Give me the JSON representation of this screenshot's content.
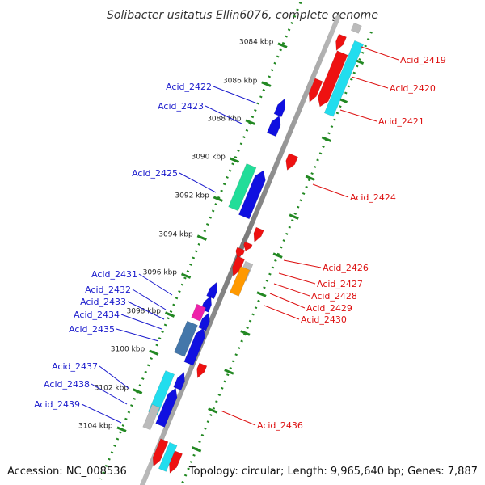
{
  "title": "Solibacter usitatus Ellin6076, complete genome",
  "accession": "Accession: NC_008536",
  "topology": "Topology: circular; Length: 9,965,640 bp; Genes: 7,887",
  "ticks": [
    {
      "label": "3084 kbp"
    },
    {
      "label": "3086 kbp"
    },
    {
      "label": "3088 kbp"
    },
    {
      "label": "3090 kbp"
    },
    {
      "label": "3092 kbp"
    },
    {
      "label": "3094 kbp"
    },
    {
      "label": "3096 kbp"
    },
    {
      "label": "3098 kbp"
    },
    {
      "label": "3100 kbp"
    },
    {
      "label": "3102 kbp"
    },
    {
      "label": "3104 kbp"
    }
  ],
  "genes_left": [
    {
      "label": "Acid_2422"
    },
    {
      "label": "Acid_2423"
    },
    {
      "label": "Acid_2425"
    },
    {
      "label": "Acid_2431"
    },
    {
      "label": "Acid_2432"
    },
    {
      "label": "Acid_2433"
    },
    {
      "label": "Acid_2434"
    },
    {
      "label": "Acid_2435"
    },
    {
      "label": "Acid_2437"
    },
    {
      "label": "Acid_2438"
    },
    {
      "label": "Acid_2439"
    }
  ],
  "genes_right": [
    {
      "label": "Acid_2419"
    },
    {
      "label": "Acid_2420"
    },
    {
      "label": "Acid_2421"
    },
    {
      "label": "Acid_2424"
    },
    {
      "label": "Acid_2426"
    },
    {
      "label": "Acid_2427"
    },
    {
      "label": "Acid_2428"
    },
    {
      "label": "Acid_2429"
    },
    {
      "label": "Acid_2430"
    },
    {
      "label": "Acid_2436"
    }
  ],
  "colors": {
    "forward": "#1010e0",
    "reverse": "#ee1111",
    "cyan": "#22ddee",
    "teal": "#22dd99",
    "steel": "#4477aa",
    "magenta": "#ee22aa",
    "orange": "#ff9900",
    "gray": "#bbbbbb",
    "backbone": "#888888",
    "dots": "#228822",
    "leftLabel": "#1a1acc",
    "rightLabel": "#dd1111"
  }
}
